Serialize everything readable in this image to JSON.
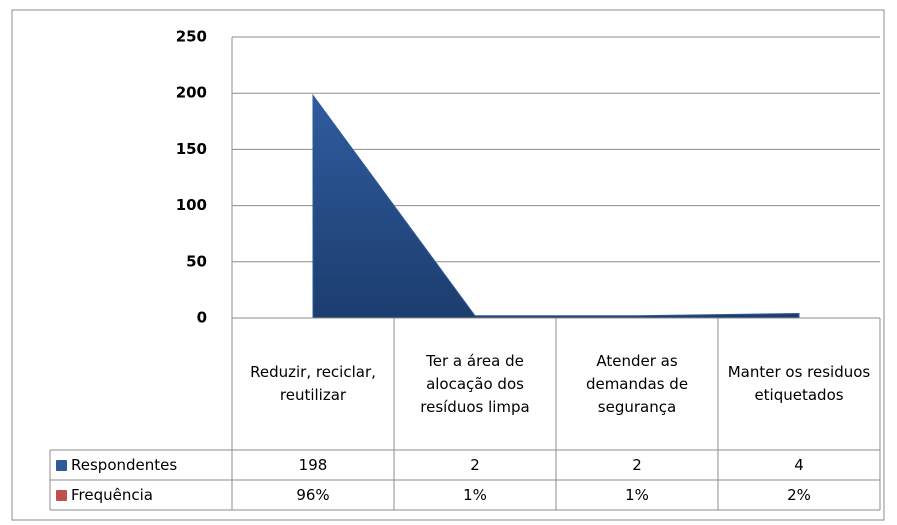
{
  "chart_data": {
    "type": "area",
    "categories": [
      "Reduzir, reciclar, reutilizar",
      "Ter a área de alocação dos resíduos limpa",
      "Atender as demandas de segurança",
      "Manter os residuos etiquetados"
    ],
    "series": [
      {
        "name": "Respondentes",
        "color": "#2e5a9a",
        "values": [
          198,
          2,
          2,
          4
        ]
      },
      {
        "name": "Frequência",
        "color": "#c0504d",
        "values": [
          0.96,
          0.01,
          0.01,
          0.02
        ],
        "value_labels": [
          "96%",
          "1%",
          "1%",
          "2%"
        ]
      }
    ],
    "ylim": [
      0,
      250
    ],
    "yticks": [
      0,
      50,
      100,
      150,
      200,
      250
    ],
    "grid": true
  }
}
